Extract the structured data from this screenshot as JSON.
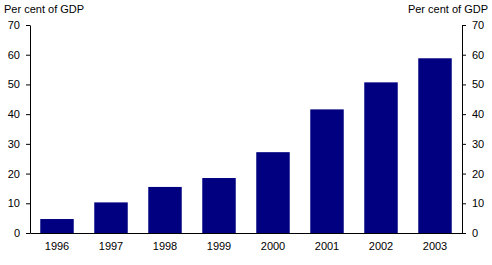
{
  "chart_data": {
    "type": "bar",
    "categories": [
      "1996",
      "1997",
      "1998",
      "1999",
      "2000",
      "2001",
      "2002",
      "2003"
    ],
    "values": [
      4.7,
      10.3,
      15.5,
      18.5,
      27.2,
      41.6,
      50.7,
      58.8
    ],
    "color": "#000080",
    "y_label": "Per cent of GDP",
    "y2_label": "Per cent of GDP",
    "ylim": [
      0,
      70
    ],
    "yticks": [
      0,
      10,
      20,
      30,
      40,
      50,
      60,
      70
    ],
    "y2lim": [
      0,
      70
    ],
    "y2ticks": [
      0,
      10,
      20,
      30,
      40,
      50,
      60,
      70
    ],
    "grid": false
  }
}
